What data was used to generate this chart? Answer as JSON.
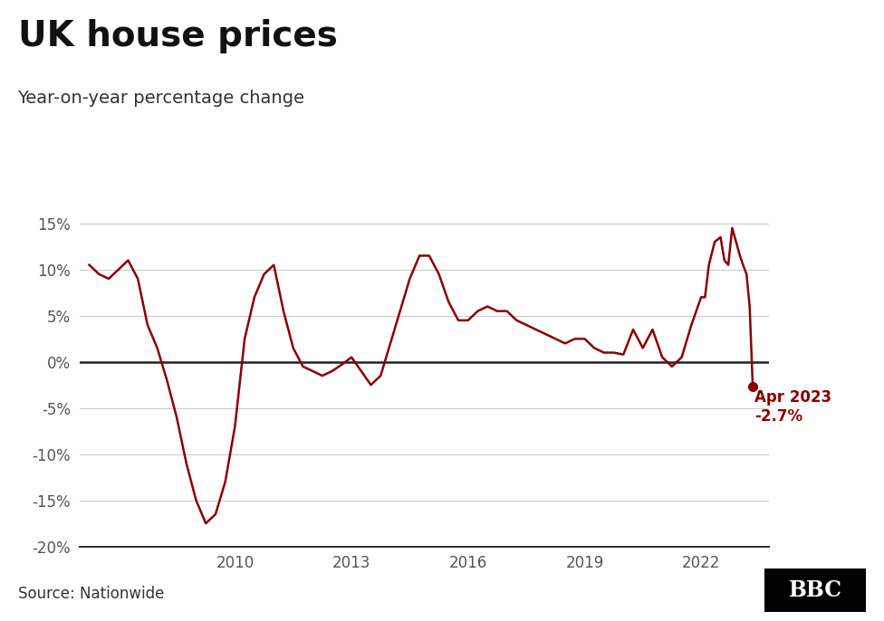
{
  "title": "UK house prices",
  "subtitle": "Year-on-year percentage change",
  "source": "Source: Nationwide",
  "line_color": "#8B0000",
  "annotation_text_line1": "Apr 2023",
  "annotation_text_line2": "-2.7%",
  "annotation_color": "#8B0000",
  "zero_line_color": "#222222",
  "grid_color": "#cccccc",
  "background_color": "#ffffff",
  "ylim": [
    -20,
    17
  ],
  "yticks": [
    -20,
    -15,
    -10,
    -5,
    0,
    5,
    10,
    15
  ],
  "xticks_years": [
    2010,
    2013,
    2016,
    2019,
    2022
  ],
  "xlim": [
    2006.0,
    2023.75
  ],
  "data": [
    [
      2006.25,
      10.5
    ],
    [
      2006.5,
      9.5
    ],
    [
      2006.75,
      9.0
    ],
    [
      2007.0,
      10.0
    ],
    [
      2007.25,
      11.0
    ],
    [
      2007.5,
      9.0
    ],
    [
      2007.75,
      4.0
    ],
    [
      2008.0,
      1.5
    ],
    [
      2008.25,
      -2.0
    ],
    [
      2008.5,
      -6.0
    ],
    [
      2008.75,
      -11.0
    ],
    [
      2009.0,
      -15.0
    ],
    [
      2009.25,
      -17.5
    ],
    [
      2009.5,
      -16.5
    ],
    [
      2009.75,
      -13.0
    ],
    [
      2010.0,
      -7.0
    ],
    [
      2010.25,
      2.5
    ],
    [
      2010.5,
      7.0
    ],
    [
      2010.75,
      9.5
    ],
    [
      2011.0,
      10.5
    ],
    [
      2011.25,
      5.5
    ],
    [
      2011.5,
      1.5
    ],
    [
      2011.75,
      -0.5
    ],
    [
      2012.0,
      -1.0
    ],
    [
      2012.25,
      -1.5
    ],
    [
      2012.5,
      -1.0
    ],
    [
      2012.75,
      -0.3
    ],
    [
      2013.0,
      0.5
    ],
    [
      2013.25,
      -1.0
    ],
    [
      2013.5,
      -2.5
    ],
    [
      2013.75,
      -1.5
    ],
    [
      2014.0,
      2.0
    ],
    [
      2014.25,
      5.5
    ],
    [
      2014.5,
      9.0
    ],
    [
      2014.75,
      11.5
    ],
    [
      2015.0,
      11.5
    ],
    [
      2015.25,
      9.5
    ],
    [
      2015.5,
      6.5
    ],
    [
      2015.75,
      4.5
    ],
    [
      2016.0,
      4.5
    ],
    [
      2016.25,
      5.5
    ],
    [
      2016.5,
      6.0
    ],
    [
      2016.75,
      5.5
    ],
    [
      2017.0,
      5.5
    ],
    [
      2017.25,
      4.5
    ],
    [
      2017.5,
      4.0
    ],
    [
      2017.75,
      3.5
    ],
    [
      2018.0,
      3.0
    ],
    [
      2018.25,
      2.5
    ],
    [
      2018.5,
      2.0
    ],
    [
      2018.75,
      2.5
    ],
    [
      2019.0,
      2.5
    ],
    [
      2019.25,
      1.5
    ],
    [
      2019.5,
      1.0
    ],
    [
      2019.75,
      1.0
    ],
    [
      2020.0,
      0.8
    ],
    [
      2020.25,
      3.5
    ],
    [
      2020.5,
      1.5
    ],
    [
      2020.75,
      3.5
    ],
    [
      2021.0,
      0.5
    ],
    [
      2021.25,
      -0.5
    ],
    [
      2021.5,
      0.5
    ],
    [
      2021.75,
      4.0
    ],
    [
      2022.0,
      7.0
    ],
    [
      2022.1,
      7.0
    ],
    [
      2022.2,
      10.5
    ],
    [
      2022.35,
      13.0
    ],
    [
      2022.5,
      13.5
    ],
    [
      2022.6,
      11.0
    ],
    [
      2022.7,
      10.5
    ],
    [
      2022.8,
      14.5
    ],
    [
      2022.9,
      13.0
    ],
    [
      2023.0,
      11.5
    ],
    [
      2023.08,
      10.5
    ],
    [
      2023.17,
      9.5
    ],
    [
      2023.25,
      6.0
    ],
    [
      2023.33,
      -2.7
    ]
  ]
}
